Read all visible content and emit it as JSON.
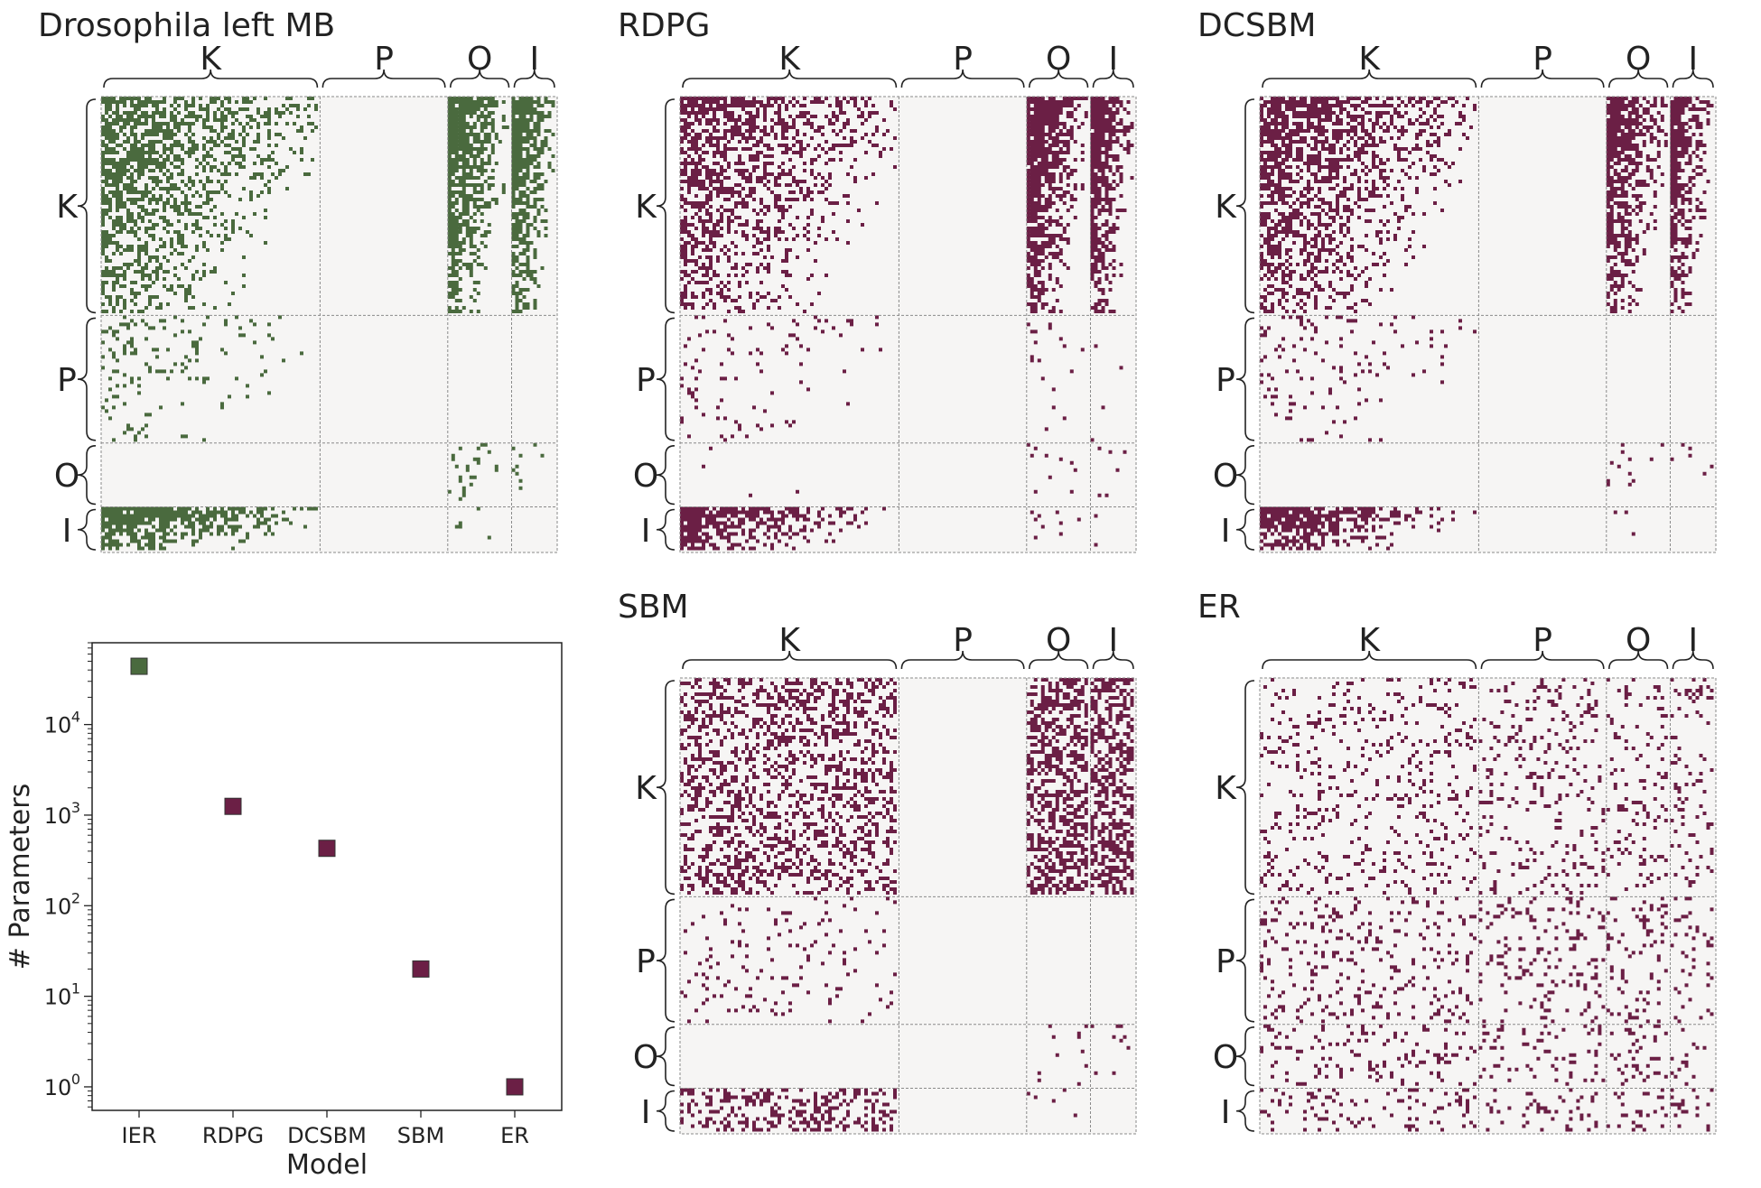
{
  "palette": {
    "real": "#4a6a3e",
    "model": "#6b1f45",
    "block_bg": "#f6f5f4",
    "grid_line": "#8a8a8a",
    "axis": "#222222"
  },
  "block_labels": [
    "K",
    "P",
    "O",
    "I"
  ],
  "block_proportions": [
    0.48,
    0.28,
    0.14,
    0.1
  ],
  "panels": [
    {
      "id": "drosophila",
      "title": "Drosophila left MB",
      "color_key": "real",
      "densities": [
        [
          0.38,
          0,
          0.55,
          0.55
        ],
        [
          0.08,
          0,
          0,
          0
        ],
        [
          0,
          0,
          0.1,
          0.06
        ],
        [
          0.55,
          0,
          0.04,
          0
        ]
      ],
      "triangular": true
    },
    {
      "id": "rdpg",
      "title": "RDPG",
      "color_key": "model",
      "densities": [
        [
          0.36,
          0,
          0.6,
          0.55
        ],
        [
          0.06,
          0,
          0.02,
          0.01
        ],
        [
          0.004,
          0,
          0.05,
          0.04
        ],
        [
          0.5,
          0,
          0.04,
          0.02
        ]
      ],
      "triangular": true
    },
    {
      "id": "dcsbm",
      "title": "DCSBM",
      "color_key": "model",
      "densities": [
        [
          0.4,
          0,
          0.5,
          0.5
        ],
        [
          0.07,
          0,
          0,
          0
        ],
        [
          0,
          0,
          0.05,
          0.04
        ],
        [
          0.45,
          0,
          0.03,
          0
        ]
      ],
      "triangular": true
    },
    {
      "id": "sbm",
      "title": "SBM",
      "color_key": "model",
      "densities": [
        [
          0.35,
          0,
          0.5,
          0.5
        ],
        [
          0.06,
          0,
          0,
          0
        ],
        [
          0,
          0,
          0.04,
          0.04
        ],
        [
          0.35,
          0,
          0.04,
          0
        ]
      ],
      "triangular": false
    },
    {
      "id": "er",
      "title": "ER",
      "color_key": "model",
      "densities": [
        [
          0.12,
          0.12,
          0.12,
          0.12
        ],
        [
          0.12,
          0.12,
          0.12,
          0.12
        ],
        [
          0.12,
          0.12,
          0.12,
          0.12
        ],
        [
          0.12,
          0.12,
          0.12,
          0.12
        ]
      ],
      "triangular": false
    }
  ],
  "chart_data": {
    "type": "scatter",
    "xlabel": "Model",
    "ylabel": "# Parameters",
    "categories": [
      "IER",
      "RDPG",
      "DCSBM",
      "SBM",
      "ER"
    ],
    "values": [
      44000,
      1250,
      430,
      20,
      1
    ],
    "point_colors": [
      "real",
      "model",
      "model",
      "model",
      "model"
    ],
    "yscale": "log",
    "ylim": [
      0.55,
      80000
    ],
    "yticks": [
      {
        "value": 1,
        "base": "10",
        "exp": "0"
      },
      {
        "value": 10,
        "base": "10",
        "exp": "1"
      },
      {
        "value": 100,
        "base": "10",
        "exp": "2"
      },
      {
        "value": 1000,
        "base": "10",
        "exp": "3"
      },
      {
        "value": 10000,
        "base": "10",
        "exp": "4"
      }
    ],
    "grid": false
  }
}
